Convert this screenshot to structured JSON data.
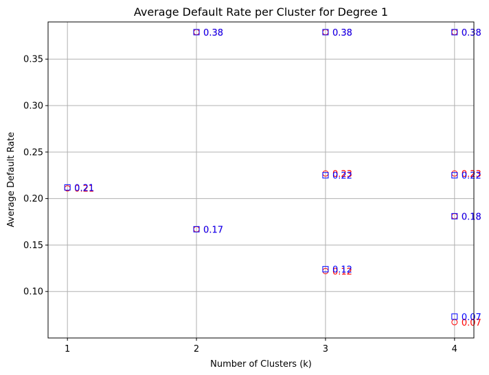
{
  "chart_data": {
    "type": "scatter",
    "title": "Average Default Rate per Cluster for Degree 1",
    "xlabel": "Number of Clusters (k)",
    "ylabel": "Average Default Rate",
    "x_ticks": [
      1,
      2,
      3,
      4
    ],
    "y_ticks": [
      0.1,
      0.15,
      0.2,
      0.25,
      0.3,
      0.35
    ],
    "xlim": [
      0.85,
      4.15
    ],
    "ylim": [
      0.05,
      0.39
    ],
    "grid": true,
    "series": [
      {
        "marker": "circle",
        "color": "#ff0000",
        "points": [
          {
            "x": 1,
            "y": 0.211,
            "label": "0.21"
          },
          {
            "x": 2,
            "y": 0.379,
            "label": "0.38"
          },
          {
            "x": 2,
            "y": 0.167,
            "label": "0.17"
          },
          {
            "x": 3,
            "y": 0.379,
            "label": "0.38"
          },
          {
            "x": 3,
            "y": 0.227,
            "label": "0.23"
          },
          {
            "x": 3,
            "y": 0.122,
            "label": "0.12"
          },
          {
            "x": 4,
            "y": 0.379,
            "label": "0.38"
          },
          {
            "x": 4,
            "y": 0.227,
            "label": "0.23"
          },
          {
            "x": 4,
            "y": 0.181,
            "label": "0.18"
          },
          {
            "x": 4,
            "y": 0.067,
            "label": "0.07"
          }
        ]
      },
      {
        "marker": "square",
        "color": "#0000ff",
        "points": [
          {
            "x": 1,
            "y": 0.212,
            "label": "0.21"
          },
          {
            "x": 2,
            "y": 0.379,
            "label": "0.38"
          },
          {
            "x": 2,
            "y": 0.167,
            "label": "0.17"
          },
          {
            "x": 3,
            "y": 0.379,
            "label": "0.38"
          },
          {
            "x": 3,
            "y": 0.225,
            "label": "0.22"
          },
          {
            "x": 3,
            "y": 0.124,
            "label": "0.12"
          },
          {
            "x": 4,
            "y": 0.379,
            "label": "0.38"
          },
          {
            "x": 4,
            "y": 0.225,
            "label": "0.22"
          },
          {
            "x": 4,
            "y": 0.181,
            "label": "0.18"
          },
          {
            "x": 4,
            "y": 0.073,
            "label": "0.07"
          }
        ]
      }
    ]
  }
}
